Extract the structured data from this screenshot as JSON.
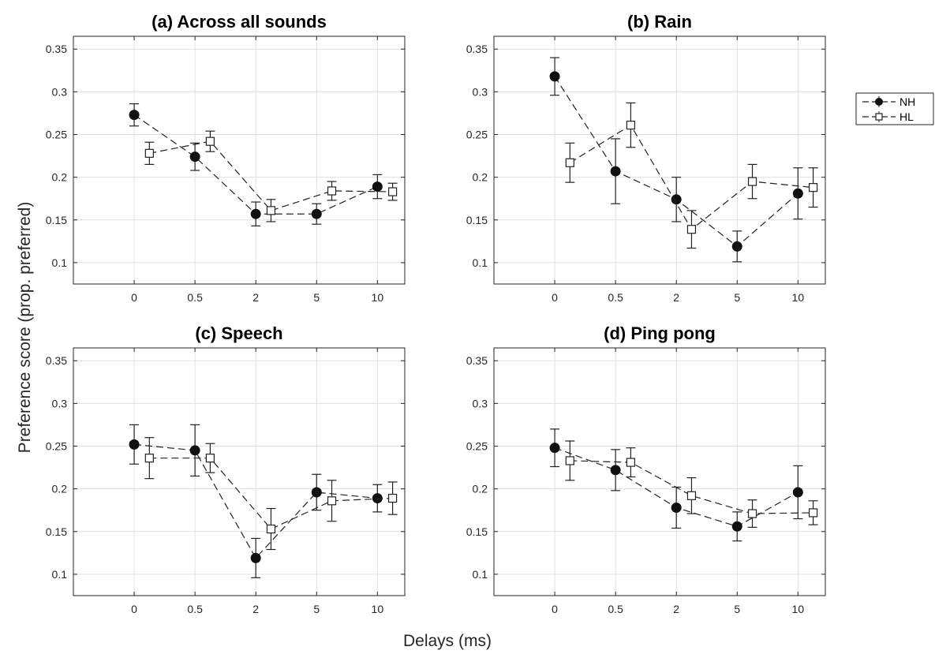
{
  "chart_data": {
    "type": "line",
    "xlabel": "Delays (ms)",
    "ylabel": "Preference score (prop. preferred)",
    "categories": [
      "0",
      "0.5",
      "2",
      "5",
      "10"
    ],
    "ylim": [
      0.075,
      0.365
    ],
    "yticks": [
      "0.1",
      "0.15",
      "0.2",
      "0.25",
      "0.3",
      "0.35"
    ],
    "grid": true,
    "legend": {
      "position": "right",
      "entries": [
        {
          "name": "NH",
          "marker": "filled-circle",
          "line": "dashed"
        },
        {
          "name": "HL",
          "marker": "open-square",
          "line": "dashed"
        }
      ]
    },
    "panels": [
      {
        "title": "(a) Across all sounds",
        "series": [
          {
            "name": "NH",
            "values": [
              0.273,
              0.224,
              0.157,
              0.157,
              0.189
            ],
            "errors": [
              0.013,
              0.016,
              0.014,
              0.012,
              0.014
            ]
          },
          {
            "name": "HL",
            "values": [
              0.228,
              0.242,
              0.161,
              0.184,
              0.183
            ],
            "errors": [
              0.013,
              0.012,
              0.013,
              0.011,
              0.01
            ]
          }
        ]
      },
      {
        "title": "(b) Rain",
        "series": [
          {
            "name": "NH",
            "values": [
              0.318,
              0.207,
              0.174,
              0.119,
              0.181
            ],
            "errors": [
              0.022,
              0.038,
              0.026,
              0.018,
              0.03
            ]
          },
          {
            "name": "HL",
            "values": [
              0.217,
              0.261,
              0.139,
              0.195,
              0.188
            ],
            "errors": [
              0.023,
              0.026,
              0.022,
              0.02,
              0.023
            ]
          }
        ]
      },
      {
        "title": "(c) Speech",
        "series": [
          {
            "name": "NH",
            "values": [
              0.252,
              0.245,
              0.119,
              0.196,
              0.189
            ],
            "errors": [
              0.023,
              0.03,
              0.023,
              0.021,
              0.016
            ]
          },
          {
            "name": "HL",
            "values": [
              0.236,
              0.236,
              0.153,
              0.186,
              0.189
            ],
            "errors": [
              0.024,
              0.017,
              0.024,
              0.024,
              0.019
            ]
          }
        ]
      },
      {
        "title": "(d) Ping pong",
        "series": [
          {
            "name": "NH",
            "values": [
              0.248,
              0.222,
              0.178,
              0.156,
              0.196
            ],
            "errors": [
              0.022,
              0.024,
              0.024,
              0.017,
              0.031
            ]
          },
          {
            "name": "HL",
            "values": [
              0.233,
              0.231,
              0.192,
              0.171,
              0.172
            ],
            "errors": [
              0.023,
              0.017,
              0.021,
              0.016,
              0.014
            ]
          }
        ]
      }
    ]
  }
}
